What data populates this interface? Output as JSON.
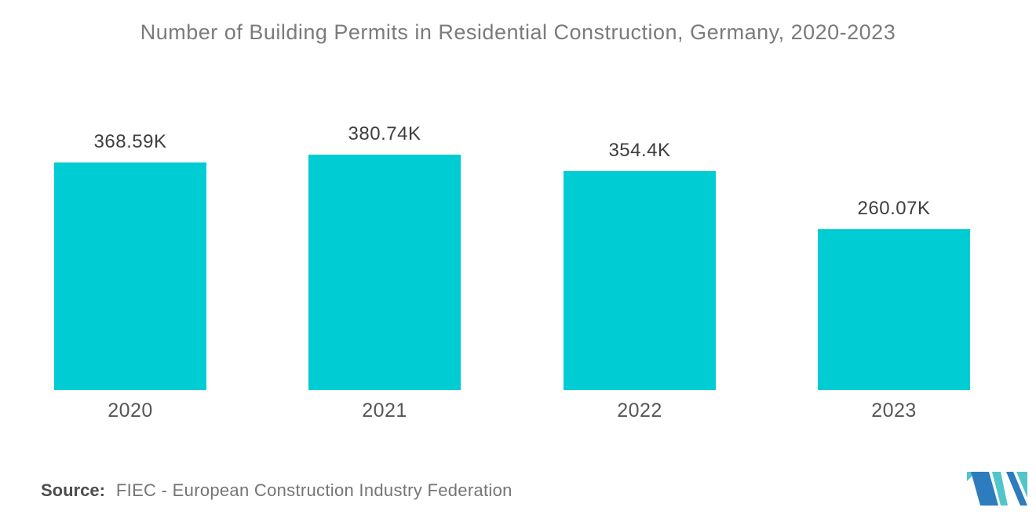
{
  "title": "Number of Building Permits in Residential Construction, Germany, 2020-2023",
  "source": {
    "label": "Source:",
    "text": "FIEC - European Construction Industry Federation"
  },
  "logo": {
    "name": "mordor-intelligence-logo",
    "blue": "#2c7cbe",
    "teal": "#52c5cb"
  },
  "colors": {
    "bar": "#00ccd3",
    "title_text": "#7b7b7b",
    "value_label_text": "#3e3e3e",
    "year_label_text": "#565656"
  },
  "chart_data": {
    "type": "bar",
    "title": "Number of Building Permits in Residential Construction, Germany, 2020-2023",
    "categories": [
      "2020",
      "2021",
      "2022",
      "2023"
    ],
    "values": [
      368.59,
      380.74,
      354.4,
      260.07
    ],
    "value_labels": [
      "368.59K",
      "380.74K",
      "354.4K",
      "260.07K"
    ],
    "unit": "thousand permits",
    "xlabel": "",
    "ylabel": "",
    "ylim": [
      0,
      380.74
    ],
    "grid": false,
    "legend": false,
    "bar_color": "#00ccd3"
  }
}
